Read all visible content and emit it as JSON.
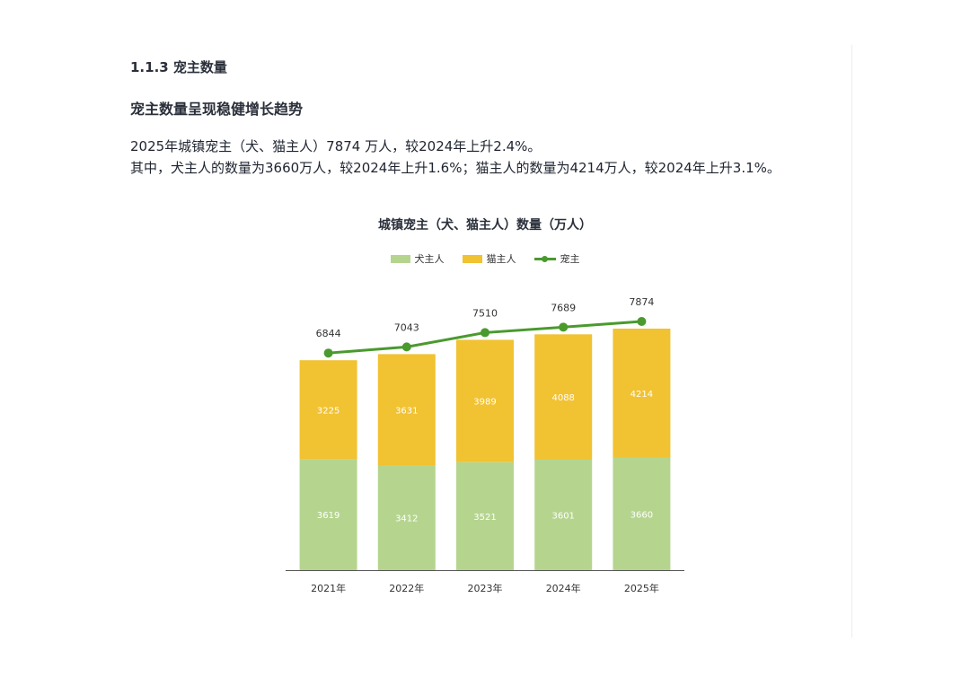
{
  "document": {
    "section_heading": "1.1.3 宠主数量",
    "subheading": "宠主数量呈现稳健增长趋势",
    "paragraph_line1": "2025年城镇宠主（犬、猫主人）7874 万人，较2024年上升2.4%。",
    "paragraph_line2": "其中，犬主人的数量为3660万人，较2024年上升1.6%；猫主人的数量为4214万人，较2024年上升3.1%。"
  },
  "colors": {
    "dog": "#b5d58f",
    "cat": "#f1c232",
    "total_line": "#4a9a2e",
    "axis": "#555555"
  },
  "chart_data": {
    "type": "bar",
    "stacked": true,
    "title": "城镇宠主（犬、猫主人）数量（万人）",
    "categories": [
      "2021年",
      "2022年",
      "2023年",
      "2024年",
      "2025年"
    ],
    "series": [
      {
        "name": "犬主人",
        "type": "bar",
        "values": [
          3619,
          3412,
          3521,
          3601,
          3660
        ]
      },
      {
        "name": "猫主人",
        "type": "bar",
        "values": [
          3225,
          3631,
          3989,
          4088,
          4214
        ]
      },
      {
        "name": "宠主",
        "type": "line",
        "values": [
          6844,
          7043,
          7510,
          7689,
          7874
        ]
      }
    ],
    "legend_position": "top-center",
    "grid": false
  }
}
